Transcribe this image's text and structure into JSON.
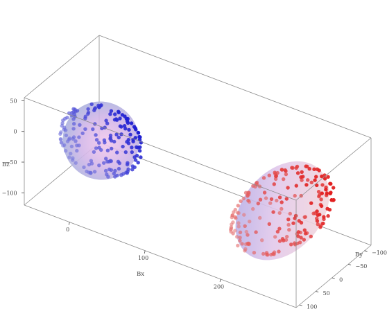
{
  "chart_data": {
    "type": "scatter",
    "projection": "3d",
    "xlabel": "Bx",
    "ylabel": "By",
    "zlabel": "Bz",
    "xlim": [
      -60,
      300
    ],
    "ylim": [
      -120,
      110
    ],
    "zlim": [
      -120,
      55
    ],
    "x_ticks": [
      {
        "label": "0",
        "value": 0
      },
      {
        "label": "100",
        "value": 100
      },
      {
        "label": "200",
        "value": 200
      }
    ],
    "y_ticks": [
      {
        "label": "−100",
        "value": -100
      },
      {
        "label": "−50",
        "value": -50
      },
      {
        "label": "0",
        "value": 0
      },
      {
        "label": "50",
        "value": 50
      },
      {
        "label": "100",
        "value": 100
      }
    ],
    "z_ticks": [
      {
        "label": "50",
        "value": 50
      },
      {
        "label": "0",
        "value": 0
      },
      {
        "label": "−50",
        "value": -50
      },
      {
        "label": "−100",
        "value": -100
      }
    ],
    "grid": false,
    "legend": "none",
    "series": [
      {
        "marker_color": "#1010d0",
        "surface": "sphere",
        "center": [
          20,
          60,
          0
        ],
        "radii": [
          50,
          50,
          50
        ],
        "points": 180,
        "seed": 11
      },
      {
        "marker_color": "#e01010",
        "surface": "ellipsoid",
        "center": [
          215,
          -45,
          -70
        ],
        "radii": [
          45,
          120,
          45
        ],
        "points": 200,
        "seed": 29
      }
    ]
  }
}
